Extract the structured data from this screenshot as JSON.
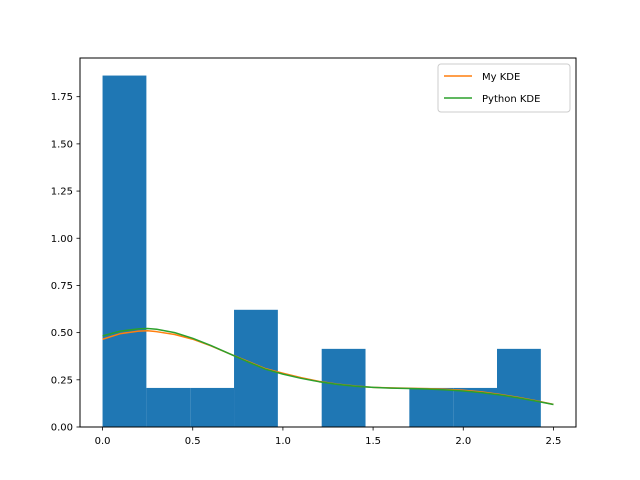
{
  "chart_data": {
    "type": "bar",
    "title": "",
    "xlabel": "",
    "ylabel": "",
    "xlim": [
      -0.125,
      2.625
    ],
    "ylim": [
      0,
      1.955
    ],
    "x_ticks": [
      0.0,
      0.5,
      1.0,
      1.5,
      2.0,
      2.5
    ],
    "x_tick_labels": [
      "0.0",
      "0.5",
      "1.0",
      "1.5",
      "2.0",
      "2.5"
    ],
    "y_ticks": [
      0.0,
      0.25,
      0.5,
      0.75,
      1.0,
      1.25,
      1.5,
      1.75
    ],
    "y_tick_labels": [
      "0.00",
      "0.25",
      "0.50",
      "0.75",
      "1.00",
      "1.25",
      "1.50",
      "1.75"
    ],
    "grid": false,
    "histogram": {
      "color": "#1f77b4",
      "bins": [
        {
          "x0": 0.0,
          "x1": 0.243,
          "height": 1.862
        },
        {
          "x0": 0.243,
          "x1": 0.486,
          "height": 0.207
        },
        {
          "x0": 0.486,
          "x1": 0.729,
          "height": 0.207
        },
        {
          "x0": 0.729,
          "x1": 0.972,
          "height": 0.621
        },
        {
          "x0": 0.972,
          "x1": 1.215,
          "height": 0.0
        },
        {
          "x0": 1.215,
          "x1": 1.458,
          "height": 0.414
        },
        {
          "x0": 1.458,
          "x1": 1.701,
          "height": 0.0
        },
        {
          "x0": 1.701,
          "x1": 1.944,
          "height": 0.207
        },
        {
          "x0": 1.944,
          "x1": 2.187,
          "height": 0.207
        },
        {
          "x0": 2.187,
          "x1": 2.43,
          "height": 0.414
        }
      ]
    },
    "series": [
      {
        "name": "My KDE",
        "color": "#ff7f0e",
        "x": [
          0.0,
          0.1,
          0.2,
          0.25,
          0.3,
          0.4,
          0.5,
          0.6,
          0.7,
          0.8,
          0.9,
          1.0,
          1.1,
          1.2,
          1.3,
          1.4,
          1.5,
          1.6,
          1.7,
          1.8,
          1.9,
          2.0,
          2.1,
          2.2,
          2.3,
          2.4,
          2.5
        ],
        "y": [
          0.465,
          0.495,
          0.508,
          0.51,
          0.505,
          0.49,
          0.465,
          0.43,
          0.39,
          0.35,
          0.31,
          0.285,
          0.262,
          0.242,
          0.227,
          0.217,
          0.21,
          0.207,
          0.205,
          0.203,
          0.2,
          0.195,
          0.186,
          0.173,
          0.158,
          0.14,
          0.12
        ]
      },
      {
        "name": "Python KDE",
        "color": "#2ca02c",
        "x": [
          0.0,
          0.1,
          0.2,
          0.25,
          0.3,
          0.4,
          0.5,
          0.6,
          0.7,
          0.8,
          0.9,
          1.0,
          1.1,
          1.2,
          1.3,
          1.4,
          1.5,
          1.6,
          1.7,
          1.8,
          1.9,
          2.0,
          2.1,
          2.2,
          2.3,
          2.4,
          2.5
        ],
        "y": [
          0.483,
          0.508,
          0.52,
          0.522,
          0.518,
          0.5,
          0.47,
          0.432,
          0.39,
          0.347,
          0.307,
          0.28,
          0.258,
          0.24,
          0.226,
          0.216,
          0.21,
          0.206,
          0.204,
          0.201,
          0.197,
          0.191,
          0.182,
          0.17,
          0.155,
          0.138,
          0.119
        ]
      }
    ],
    "legend": {
      "position": "top-right",
      "entries": [
        "My KDE",
        "Python KDE"
      ]
    }
  }
}
